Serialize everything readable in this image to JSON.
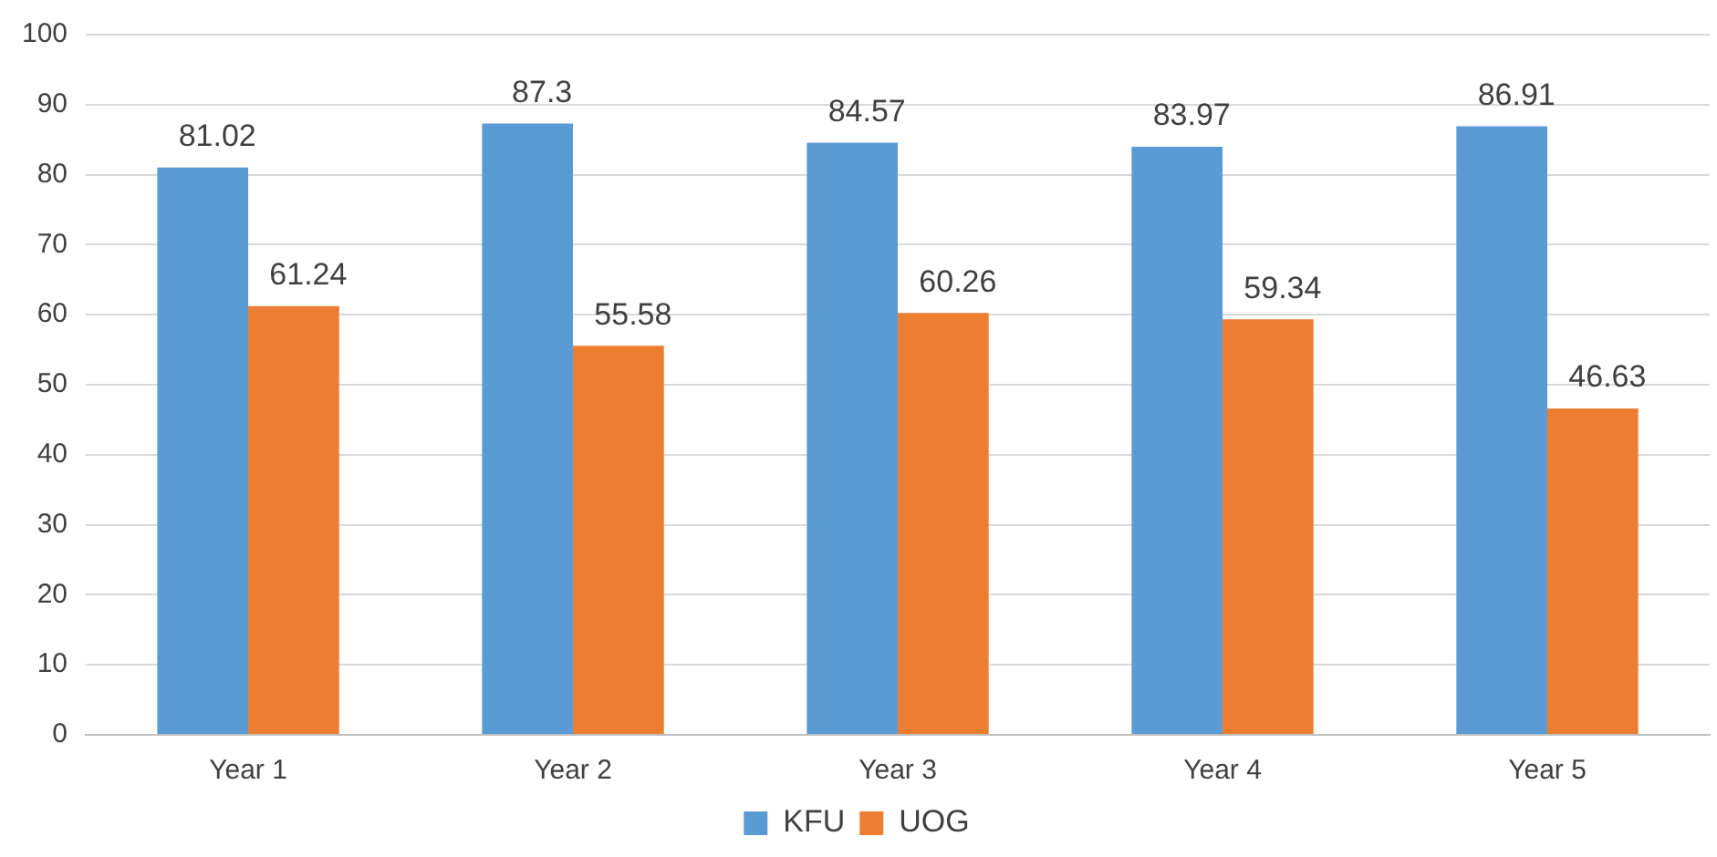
{
  "chart_data": {
    "type": "bar",
    "categories": [
      "Year 1",
      "Year 2",
      "Year 3",
      "Year 4",
      "Year 5"
    ],
    "series": [
      {
        "name": "KFU",
        "color": "#5b9bd5",
        "values": [
          81.02,
          87.3,
          84.57,
          83.97,
          86.91
        ]
      },
      {
        "name": "UOG",
        "color": "#ed7d31",
        "values": [
          61.24,
          55.58,
          60.26,
          59.34,
          46.63
        ]
      }
    ],
    "ylim": [
      0,
      100
    ],
    "yticks": [
      0,
      10,
      20,
      30,
      40,
      50,
      60,
      70,
      80,
      90,
      100
    ],
    "grid": "y",
    "legend": "bottom",
    "data_labels": true
  }
}
